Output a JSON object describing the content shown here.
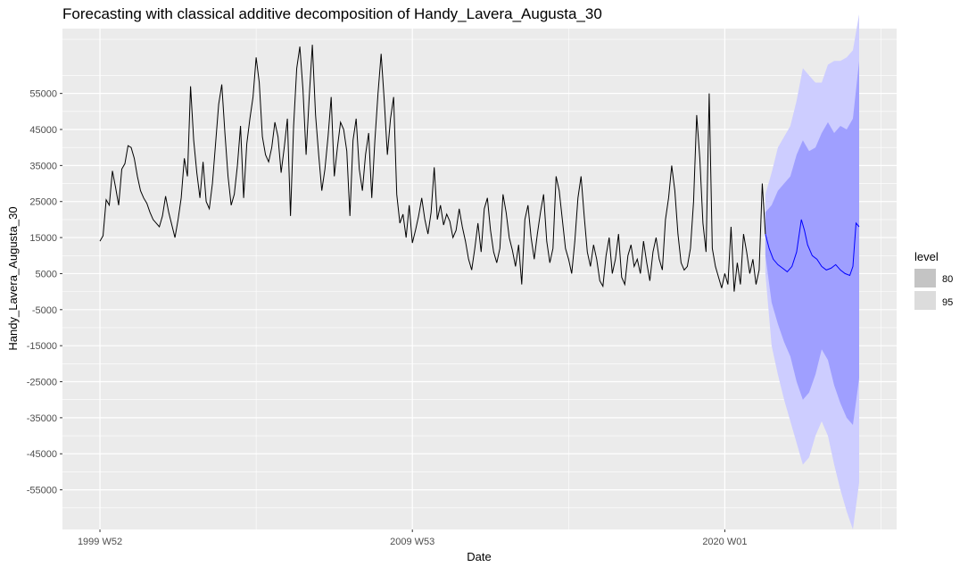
{
  "chart_data": {
    "type": "line",
    "title": "Forecasting with classical additive decomposition of Handy_Lavera_Augusta_30",
    "xlabel": "Date",
    "ylabel": "Handy_Lavera_Augusta_30",
    "x_ticks": [
      {
        "label": "1999 W52",
        "t": 0
      },
      {
        "label": "2009 W53",
        "t": 10
      },
      {
        "label": "2020 W01",
        "t": 20
      }
    ],
    "y_ticks": [
      -55000,
      -45000,
      -35000,
      -25000,
      -15000,
      -5000,
      5000,
      15000,
      25000,
      35000,
      45000,
      55000
    ],
    "ylim": [
      -66000,
      73000
    ],
    "xlim": [
      -1.2,
      25.5
    ],
    "grid": true,
    "legend": {
      "title": "level",
      "position": "right",
      "items": [
        {
          "label": "80",
          "swatch": "#c4c4c4"
        },
        {
          "label": "95",
          "swatch": "#dcdcdc"
        }
      ]
    },
    "colors": {
      "panel": "#ebebeb",
      "grid": "#ffffff",
      "history_line": "#000000",
      "forecast_line": "#0000ff",
      "band_80": "#9f9fff",
      "band_95": "#cdcdff"
    },
    "history": {
      "name": "observed",
      "points": [
        [
          0.0,
          14000
        ],
        [
          0.1,
          15500
        ],
        [
          0.2,
          25500
        ],
        [
          0.3,
          24000
        ],
        [
          0.4,
          33500
        ],
        [
          0.5,
          29000
        ],
        [
          0.6,
          24000
        ],
        [
          0.7,
          34000
        ],
        [
          0.8,
          35500
        ],
        [
          0.9,
          40500
        ],
        [
          1.0,
          40000
        ],
        [
          1.1,
          37000
        ],
        [
          1.2,
          32000
        ],
        [
          1.3,
          28000
        ],
        [
          1.4,
          26000
        ],
        [
          1.5,
          24500
        ],
        [
          1.6,
          22000
        ],
        [
          1.7,
          20000
        ],
        [
          1.8,
          19000
        ],
        [
          1.9,
          18000
        ],
        [
          2.0,
          21000
        ],
        [
          2.1,
          26500
        ],
        [
          2.2,
          22000
        ],
        [
          2.3,
          18500
        ],
        [
          2.4,
          15000
        ],
        [
          2.5,
          20000
        ],
        [
          2.6,
          26000
        ],
        [
          2.7,
          37000
        ],
        [
          2.8,
          32000
        ],
        [
          2.9,
          57000
        ],
        [
          3.0,
          42000
        ],
        [
          3.1,
          33000
        ],
        [
          3.2,
          26000
        ],
        [
          3.3,
          36000
        ],
        [
          3.4,
          25000
        ],
        [
          3.5,
          23000
        ],
        [
          3.6,
          30000
        ],
        [
          3.7,
          41000
        ],
        [
          3.8,
          52000
        ],
        [
          3.9,
          57500
        ],
        [
          4.0,
          44000
        ],
        [
          4.1,
          32000
        ],
        [
          4.2,
          24000
        ],
        [
          4.3,
          27000
        ],
        [
          4.4,
          35000
        ],
        [
          4.5,
          46000
        ],
        [
          4.6,
          26000
        ],
        [
          4.7,
          41000
        ],
        [
          4.8,
          48000
        ],
        [
          4.9,
          54000
        ],
        [
          5.0,
          65000
        ],
        [
          5.1,
          58000
        ],
        [
          5.2,
          43000
        ],
        [
          5.3,
          38000
        ],
        [
          5.4,
          36000
        ],
        [
          5.5,
          40000
        ],
        [
          5.6,
          47000
        ],
        [
          5.7,
          43000
        ],
        [
          5.8,
          33000
        ],
        [
          5.9,
          40000
        ],
        [
          6.0,
          48000
        ],
        [
          6.1,
          21000
        ],
        [
          6.2,
          46000
        ],
        [
          6.3,
          62000
        ],
        [
          6.4,
          68000
        ],
        [
          6.5,
          56000
        ],
        [
          6.6,
          38000
        ],
        [
          6.7,
          54000
        ],
        [
          6.8,
          68500
        ],
        [
          6.9,
          49000
        ],
        [
          7.0,
          38000
        ],
        [
          7.1,
          28000
        ],
        [
          7.2,
          34000
        ],
        [
          7.3,
          43000
        ],
        [
          7.4,
          54000
        ],
        [
          7.5,
          32000
        ],
        [
          7.6,
          40000
        ],
        [
          7.7,
          47000
        ],
        [
          7.8,
          45000
        ],
        [
          7.9,
          39000
        ],
        [
          8.0,
          21000
        ],
        [
          8.1,
          42000
        ],
        [
          8.2,
          48000
        ],
        [
          8.3,
          34000
        ],
        [
          8.4,
          28000
        ],
        [
          8.5,
          38000
        ],
        [
          8.6,
          44000
        ],
        [
          8.7,
          26000
        ],
        [
          8.8,
          42000
        ],
        [
          8.9,
          55000
        ],
        [
          9.0,
          66000
        ],
        [
          9.1,
          53000
        ],
        [
          9.2,
          38000
        ],
        [
          9.3,
          48000
        ],
        [
          9.4,
          54000
        ],
        [
          9.5,
          27000
        ],
        [
          9.6,
          19000
        ],
        [
          9.7,
          21500
        ],
        [
          9.8,
          15000
        ],
        [
          9.9,
          24000
        ],
        [
          10.0,
          13500
        ],
        [
          10.1,
          17000
        ],
        [
          10.2,
          21000
        ],
        [
          10.3,
          26000
        ],
        [
          10.4,
          20000
        ],
        [
          10.5,
          16000
        ],
        [
          10.6,
          22000
        ],
        [
          10.7,
          34500
        ],
        [
          10.8,
          20000
        ],
        [
          10.9,
          24000
        ],
        [
          11.0,
          18500
        ],
        [
          11.1,
          21500
        ],
        [
          11.2,
          19500
        ],
        [
          11.3,
          15000
        ],
        [
          11.4,
          17000
        ],
        [
          11.5,
          23000
        ],
        [
          11.6,
          18000
        ],
        [
          11.7,
          14000
        ],
        [
          11.8,
          9000
        ],
        [
          11.9,
          6000
        ],
        [
          12.0,
          12000
        ],
        [
          12.1,
          19000
        ],
        [
          12.2,
          11000
        ],
        [
          12.3,
          23000
        ],
        [
          12.4,
          26000
        ],
        [
          12.5,
          17000
        ],
        [
          12.6,
          11000
        ],
        [
          12.7,
          8000
        ],
        [
          12.8,
          12000
        ],
        [
          12.9,
          27000
        ],
        [
          13.0,
          22000
        ],
        [
          13.1,
          15000
        ],
        [
          13.2,
          11500
        ],
        [
          13.3,
          7000
        ],
        [
          13.4,
          13000
        ],
        [
          13.5,
          2000
        ],
        [
          13.6,
          20000
        ],
        [
          13.7,
          24000
        ],
        [
          13.8,
          15000
        ],
        [
          13.9,
          9000
        ],
        [
          14.0,
          16000
        ],
        [
          14.1,
          22000
        ],
        [
          14.2,
          27000
        ],
        [
          14.3,
          14000
        ],
        [
          14.4,
          8000
        ],
        [
          14.5,
          12000
        ],
        [
          14.6,
          32000
        ],
        [
          14.7,
          28000
        ],
        [
          14.8,
          20000
        ],
        [
          14.9,
          12000
        ],
        [
          15.0,
          9000
        ],
        [
          15.1,
          5000
        ],
        [
          15.2,
          14000
        ],
        [
          15.3,
          26000
        ],
        [
          15.4,
          32000
        ],
        [
          15.5,
          21000
        ],
        [
          15.6,
          11000
        ],
        [
          15.7,
          7000
        ],
        [
          15.8,
          13000
        ],
        [
          15.9,
          9000
        ],
        [
          16.0,
          3000
        ],
        [
          16.1,
          1500
        ],
        [
          16.2,
          10000
        ],
        [
          16.3,
          15000
        ],
        [
          16.4,
          5000
        ],
        [
          16.5,
          9000
        ],
        [
          16.6,
          16000
        ],
        [
          16.7,
          4000
        ],
        [
          16.8,
          2000
        ],
        [
          16.9,
          10000
        ],
        [
          17.0,
          13000
        ],
        [
          17.1,
          7000
        ],
        [
          17.2,
          9000
        ],
        [
          17.3,
          5000
        ],
        [
          17.4,
          14000
        ],
        [
          17.5,
          8000
        ],
        [
          17.6,
          3000
        ],
        [
          17.7,
          11000
        ],
        [
          17.8,
          15000
        ],
        [
          17.9,
          9000
        ],
        [
          18.0,
          6000
        ],
        [
          18.1,
          20000
        ],
        [
          18.2,
          26000
        ],
        [
          18.3,
          35000
        ],
        [
          18.4,
          28000
        ],
        [
          18.5,
          16000
        ],
        [
          18.6,
          8000
        ],
        [
          18.7,
          6000
        ],
        [
          18.8,
          7000
        ],
        [
          18.9,
          12000
        ],
        [
          19.0,
          25000
        ],
        [
          19.1,
          49000
        ],
        [
          19.2,
          37000
        ],
        [
          19.3,
          19000
        ],
        [
          19.4,
          11000
        ],
        [
          19.5,
          55000
        ],
        [
          19.6,
          12000
        ],
        [
          19.7,
          7000
        ],
        [
          19.8,
          4000
        ],
        [
          19.9,
          1000
        ],
        [
          20.0,
          5000
        ],
        [
          20.1,
          2000
        ],
        [
          20.2,
          18000
        ],
        [
          20.3,
          0
        ],
        [
          20.4,
          8000
        ],
        [
          20.5,
          2000
        ],
        [
          20.6,
          16000
        ],
        [
          20.7,
          11000
        ],
        [
          20.8,
          5000
        ],
        [
          20.9,
          9000
        ],
        [
          21.0,
          2000
        ],
        [
          21.1,
          6000
        ],
        [
          21.2,
          30000
        ],
        [
          21.3,
          16000
        ]
      ]
    },
    "forecast": {
      "name": "forecast",
      "points": [
        [
          21.3,
          16000
        ],
        [
          21.42,
          12000
        ],
        [
          21.55,
          9000
        ],
        [
          21.7,
          7500
        ],
        [
          21.85,
          6500
        ],
        [
          22.0,
          5500
        ],
        [
          22.15,
          7000
        ],
        [
          22.3,
          11000
        ],
        [
          22.45,
          20000
        ],
        [
          22.55,
          17000
        ],
        [
          22.65,
          13000
        ],
        [
          22.8,
          10000
        ],
        [
          22.95,
          9000
        ],
        [
          23.1,
          7000
        ],
        [
          23.25,
          6000
        ],
        [
          23.4,
          6500
        ],
        [
          23.55,
          7500
        ],
        [
          23.7,
          6000
        ],
        [
          23.85,
          5000
        ],
        [
          24.0,
          4500
        ],
        [
          24.1,
          7000
        ],
        [
          24.2,
          19000
        ],
        [
          24.3,
          18000
        ]
      ]
    },
    "interval_80": {
      "level": "80",
      "x": [
        21.3,
        21.5,
        21.7,
        21.9,
        22.1,
        22.3,
        22.5,
        22.7,
        22.9,
        23.1,
        23.3,
        23.5,
        23.7,
        23.9,
        24.1,
        24.3
      ],
      "upper": [
        22000,
        24000,
        28000,
        30000,
        32000,
        38000,
        42000,
        39000,
        40000,
        44000,
        47000,
        44000,
        46000,
        45000,
        48000,
        64000
      ],
      "lower": [
        10000,
        -3000,
        -9000,
        -14000,
        -18000,
        -25000,
        -30000,
        -28000,
        -23000,
        -16000,
        -19000,
        -26000,
        -31000,
        -35000,
        -37000,
        -24000
      ]
    },
    "interval_95": {
      "level": "95",
      "x": [
        21.3,
        21.5,
        21.7,
        21.9,
        22.1,
        22.3,
        22.5,
        22.7,
        22.9,
        23.1,
        23.3,
        23.5,
        23.7,
        23.9,
        24.1,
        24.3
      ],
      "upper": [
        27000,
        33000,
        40000,
        43000,
        46000,
        53000,
        62000,
        60000,
        58000,
        58000,
        63000,
        64000,
        64000,
        65000,
        67000,
        77000
      ],
      "lower": [
        5000,
        -15000,
        -23000,
        -30000,
        -36000,
        -42000,
        -48000,
        -46000,
        -40000,
        -36000,
        -40000,
        -48000,
        -55000,
        -61000,
        -66000,
        -53000
      ]
    }
  }
}
